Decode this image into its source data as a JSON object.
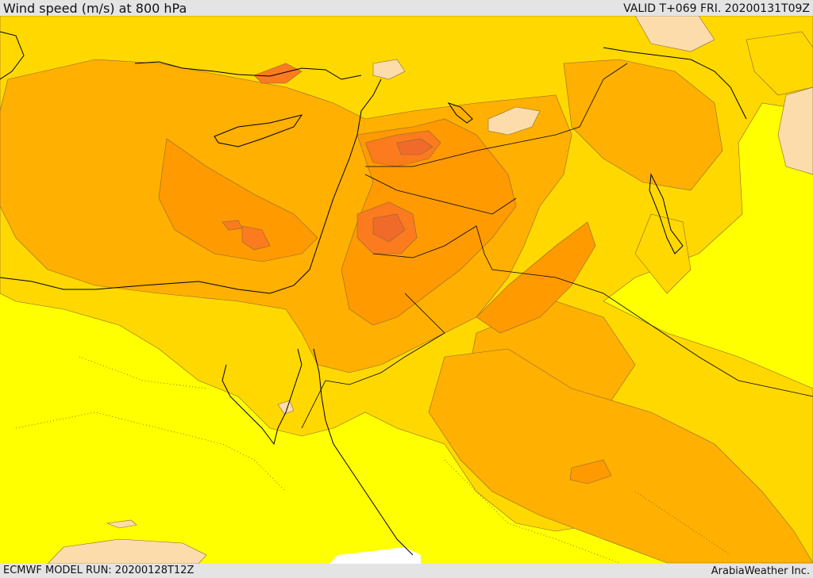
{
  "header": {
    "title": "Wind speed (m/s) at 800 hPa",
    "valid": "VALID T+069 FRI. 20200131T09Z"
  },
  "footer": {
    "model_run": "ECMWF MODEL RUN: 20200128T12Z",
    "credit": "ArabiaWeather Inc."
  },
  "colors": {
    "sea_land_background": "#ffff00",
    "level_1": "#ffd800",
    "level_2": "#ffb000",
    "level_3": "#ff9a00",
    "level_4": "#fb7b1e",
    "level_5": "#f06a2a",
    "low_wind": "#fcdcaa",
    "no_data": "#ffffff"
  }
}
